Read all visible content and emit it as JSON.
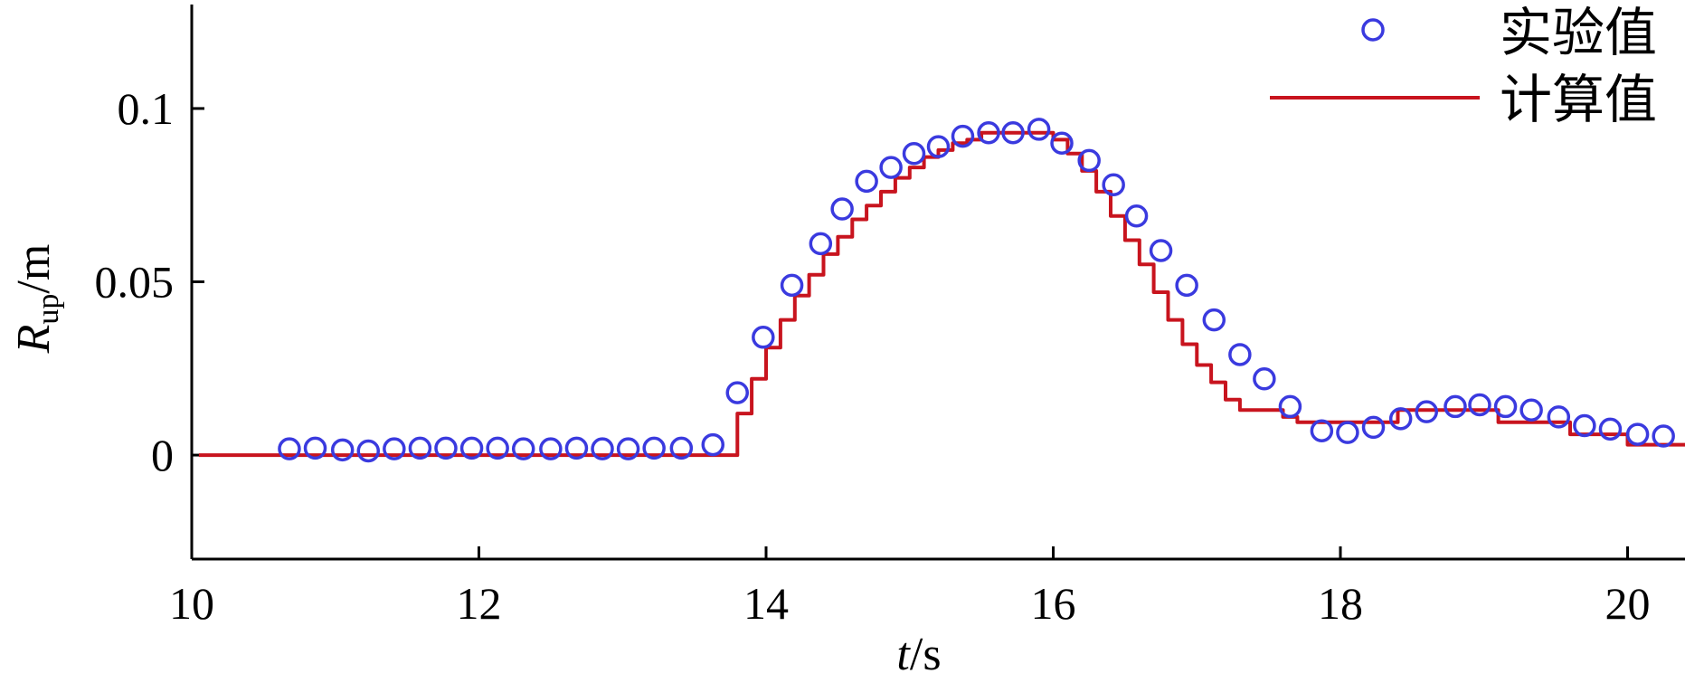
{
  "chart_data": {
    "type": "scatter",
    "xlabel": {
      "var": "t",
      "unit": "/s"
    },
    "ylabel": {
      "var": "R",
      "sub": "up",
      "unit": "/m"
    },
    "xlim": [
      10,
      20.4
    ],
    "ylim": [
      -0.03,
      0.13
    ],
    "x_ticks": [
      10,
      12,
      14,
      16,
      18,
      20
    ],
    "y_ticks": [
      0,
      0.05,
      0.1
    ],
    "grid": false,
    "legend": "top-right",
    "colors": {
      "experiment": "#3a3adf",
      "computed": "#c8141e",
      "axis": "#000000"
    },
    "series": [
      {
        "name": "实验值",
        "kind": "scatter",
        "x": [
          10.68,
          10.86,
          11.05,
          11.23,
          11.41,
          11.59,
          11.77,
          11.95,
          12.13,
          12.31,
          12.5,
          12.68,
          12.86,
          13.04,
          13.22,
          13.41,
          13.63,
          13.8,
          13.98,
          14.18,
          14.38,
          14.53,
          14.7,
          14.87,
          15.03,
          15.2,
          15.37,
          15.55,
          15.72,
          15.9,
          16.06,
          16.25,
          16.42,
          16.58,
          16.75,
          16.93,
          17.12,
          17.3,
          17.47,
          17.65,
          17.87,
          18.05,
          18.23,
          18.42,
          18.6,
          18.8,
          18.97,
          19.15,
          19.33,
          19.52,
          19.7,
          19.88,
          20.07,
          20.25
        ],
        "y": [
          0.0018,
          0.002,
          0.0015,
          0.0012,
          0.0018,
          0.002,
          0.002,
          0.002,
          0.002,
          0.0018,
          0.0018,
          0.002,
          0.0018,
          0.0018,
          0.002,
          0.002,
          0.003,
          0.018,
          0.034,
          0.049,
          0.061,
          0.071,
          0.079,
          0.083,
          0.087,
          0.089,
          0.092,
          0.093,
          0.093,
          0.094,
          0.09,
          0.085,
          0.078,
          0.069,
          0.059,
          0.049,
          0.039,
          0.029,
          0.022,
          0.014,
          0.007,
          0.0065,
          0.008,
          0.0105,
          0.0125,
          0.014,
          0.0145,
          0.014,
          0.013,
          0.011,
          0.0085,
          0.0075,
          0.006,
          0.0055
        ]
      },
      {
        "name": "计算值",
        "kind": "line",
        "x": [
          10.05,
          13.7,
          13.8,
          13.9,
          14.0,
          14.1,
          14.2,
          14.3,
          14.4,
          14.5,
          14.6,
          14.7,
          14.8,
          14.9,
          15.0,
          15.1,
          15.2,
          15.3,
          15.4,
          15.5,
          15.6,
          15.7,
          15.8,
          15.9,
          16.0,
          16.1,
          16.2,
          16.3,
          16.4,
          16.5,
          16.6,
          16.7,
          16.8,
          16.9,
          17.0,
          17.1,
          17.2,
          17.3,
          17.4,
          17.5,
          17.6,
          17.7,
          17.8,
          17.9,
          18.0,
          18.1,
          18.2,
          18.3,
          18.4,
          18.5,
          18.6,
          18.7,
          18.8,
          18.9,
          19.0,
          19.1,
          19.2,
          19.3,
          19.4,
          19.5,
          19.6,
          19.7,
          19.8,
          19.9,
          20.0,
          20.1,
          20.2,
          20.4
        ],
        "y": [
          0.0,
          0.0,
          0.012,
          0.022,
          0.031,
          0.039,
          0.046,
          0.052,
          0.058,
          0.063,
          0.068,
          0.072,
          0.076,
          0.08,
          0.083,
          0.086,
          0.088,
          0.09,
          0.091,
          0.093,
          0.093,
          0.093,
          0.093,
          0.093,
          0.091,
          0.087,
          0.082,
          0.076,
          0.069,
          0.062,
          0.055,
          0.047,
          0.039,
          0.032,
          0.026,
          0.021,
          0.016,
          0.013,
          0.013,
          0.013,
          0.011,
          0.0095,
          0.0095,
          0.0095,
          0.0095,
          0.0095,
          0.0095,
          0.0095,
          0.013,
          0.013,
          0.013,
          0.013,
          0.013,
          0.013,
          0.013,
          0.0095,
          0.0095,
          0.0095,
          0.0095,
          0.0095,
          0.006,
          0.006,
          0.006,
          0.006,
          0.003,
          0.003,
          0.003,
          0.003
        ]
      }
    ]
  }
}
